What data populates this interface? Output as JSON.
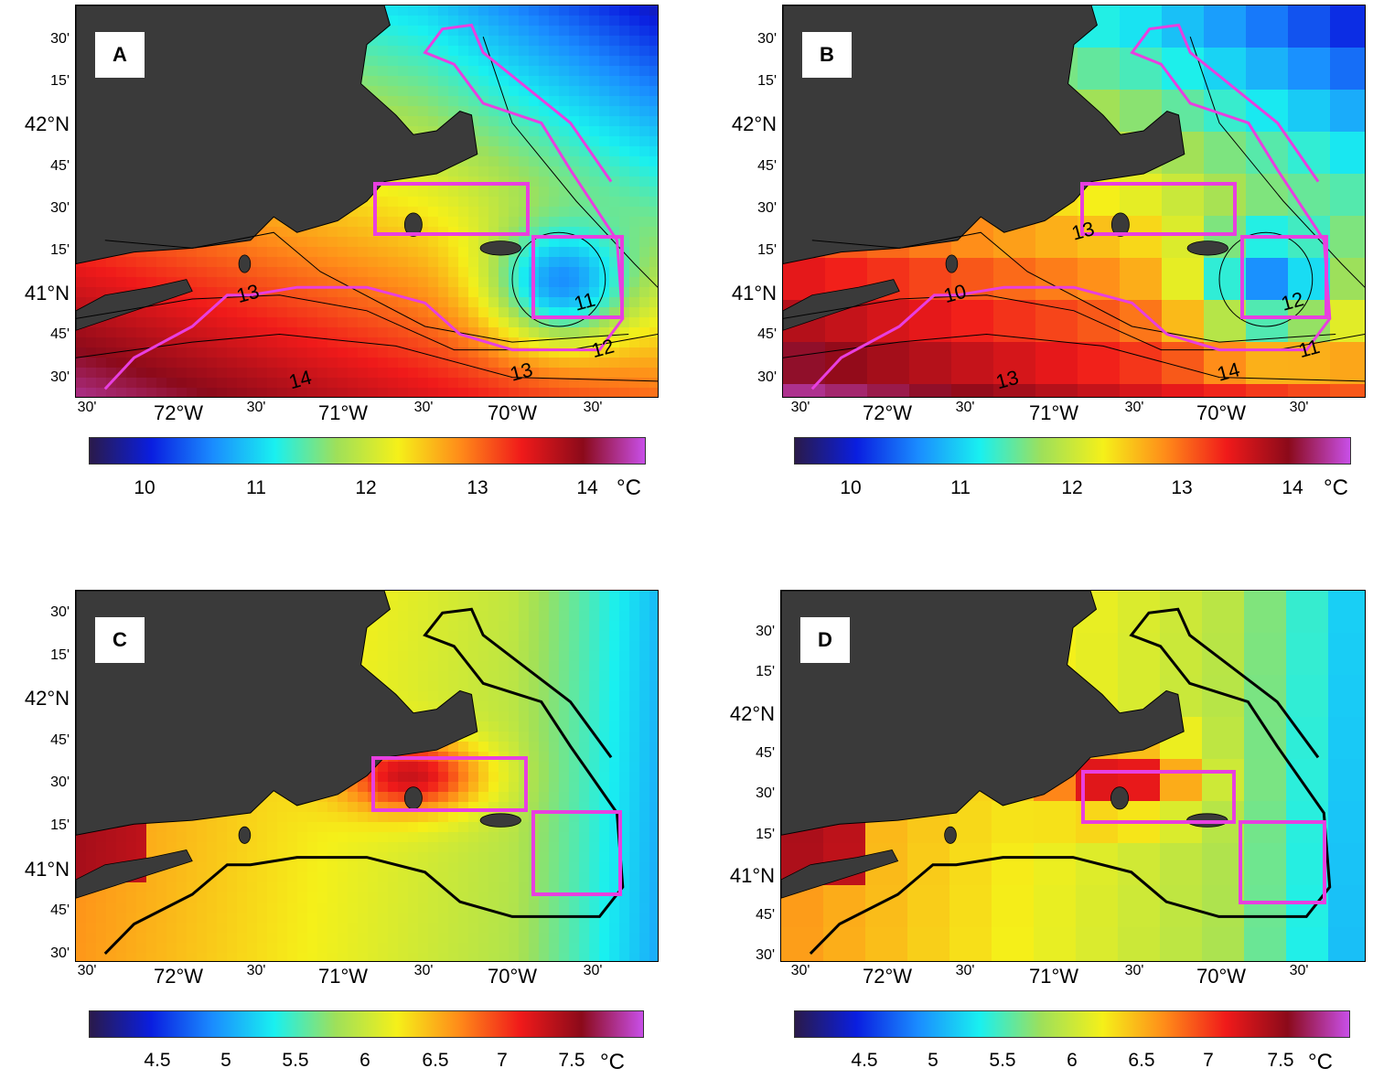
{
  "panels": [
    {
      "id": "A",
      "label": "A",
      "palette": "warm",
      "style": "smooth",
      "contour_color": "#e83fe0",
      "contour_labels": [
        "13",
        "14",
        "13",
        "12",
        "11"
      ],
      "lat_ticks": [
        "30'",
        "15'",
        "42°N",
        "45'",
        "30'",
        "15'",
        "41°N",
        "45'",
        "30'"
      ],
      "lon_ticks": [
        "30'",
        "72°W",
        "30'",
        "71°W",
        "30'",
        "70°W",
        "30'"
      ],
      "colorbar": {
        "ticks": [
          "10",
          "11",
          "12",
          "13",
          "14"
        ],
        "unit": "°C",
        "range": [
          9.5,
          14.5
        ]
      }
    },
    {
      "id": "B",
      "label": "B",
      "palette": "warm",
      "style": "pixel",
      "contour_color": "#e83fe0",
      "contour_labels": [
        "10",
        "13",
        "14",
        "11",
        "12",
        "13"
      ],
      "lat_ticks": [
        "30'",
        "15'",
        "42°N",
        "45'",
        "30'",
        "15'",
        "41°N",
        "45'",
        "30'"
      ],
      "lon_ticks": [
        "30'",
        "72°W",
        "30'",
        "71°W",
        "30'",
        "70°W",
        "30'"
      ],
      "colorbar": {
        "ticks": [
          "10",
          "11",
          "12",
          "13",
          "14"
        ],
        "unit": "°C",
        "range": [
          9.5,
          14.5
        ]
      }
    },
    {
      "id": "C",
      "label": "C",
      "palette": "cold",
      "style": "smooth",
      "contour_color": "#000000",
      "contour_labels": [],
      "lat_ticks": [
        "30'",
        "15'",
        "42°N",
        "45'",
        "30'",
        "15'",
        "41°N",
        "45'",
        "30'"
      ],
      "lon_ticks": [
        "30'",
        "72°W",
        "30'",
        "71°W",
        "30'",
        "70°W",
        "30'"
      ],
      "colorbar": {
        "ticks": [
          "4.5",
          "5",
          "5.5",
          "6",
          "6.5",
          "7",
          "7.5"
        ],
        "unit": "°C",
        "range": [
          4.0,
          8.0
        ]
      }
    },
    {
      "id": "D",
      "label": "D",
      "palette": "cold",
      "style": "pixel",
      "contour_color": "#000000",
      "contour_labels": [],
      "lat_ticks": [
        "30'",
        "15'",
        "42°N",
        "45'",
        "30'",
        "15'",
        "41°N",
        "45'",
        "30'"
      ],
      "lon_ticks": [
        "30'",
        "72°W",
        "30'",
        "71°W",
        "30'",
        "70°W",
        "30'"
      ],
      "colorbar": {
        "ticks": [
          "4.5",
          "5",
          "5.5",
          "6",
          "6.5",
          "7",
          "7.5"
        ],
        "unit": "°C",
        "range": [
          4.0,
          8.0
        ]
      }
    }
  ],
  "colors": {
    "land": "#3a3a3a",
    "box": "#e83fe0",
    "colormap": [
      "#2a1a4a",
      "#0a1ee0",
      "#1a8cff",
      "#19f0f0",
      "#9ee05a",
      "#f5f019",
      "#ff8c19",
      "#f01a1a",
      "#8b0a1a",
      "#c84fe8"
    ]
  }
}
